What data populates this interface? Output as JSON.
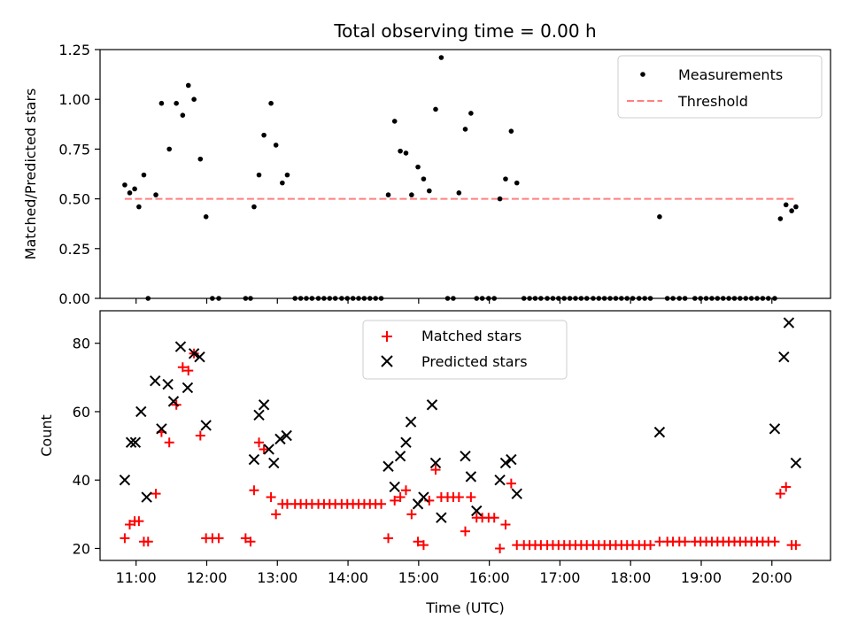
{
  "title": "Total observing time = 0.00 h",
  "colors": {
    "matched": "#ff0000",
    "predicted": "#000000",
    "threshold": "#ff7f7f",
    "measurement": "#000000"
  },
  "chart_data": [
    {
      "type": "scatter",
      "ylabel": "Matched/Predicted stars",
      "xlim": [
        10.49,
        20.83
      ],
      "ylim": [
        0,
        1.25
      ],
      "yticks": [
        "0.00",
        "0.25",
        "0.50",
        "0.75",
        "1.00",
        "1.25"
      ],
      "legend_position": "top-right",
      "threshold": {
        "name": "Threshold",
        "value": 0.5,
        "x_range": [
          10.84,
          20.34
        ]
      },
      "series": [
        {
          "name": "Measurements",
          "x": [
            10.84,
            10.91,
            10.98,
            11.04,
            11.11,
            11.17,
            11.28,
            11.36,
            11.47,
            11.57,
            11.66,
            11.74,
            11.82,
            11.91,
            11.99,
            12.08,
            12.17,
            12.55,
            12.62,
            12.67,
            12.74,
            12.81,
            12.91,
            12.98,
            13.07,
            13.14,
            13.25,
            13.33,
            13.41,
            13.49,
            13.58,
            13.66,
            13.74,
            13.82,
            13.91,
            13.99,
            14.07,
            14.15,
            14.23,
            14.31,
            14.39,
            14.47,
            14.57,
            14.66,
            14.74,
            14.82,
            14.9,
            14.99,
            15.07,
            15.15,
            15.24,
            15.32,
            15.41,
            15.49,
            15.57,
            15.66,
            15.74,
            15.82,
            15.9,
            15.99,
            16.07,
            16.15,
            16.23,
            16.31,
            16.39,
            16.49,
            16.57,
            16.65,
            16.73,
            16.82,
            16.9,
            16.98,
            17.06,
            17.14,
            17.22,
            17.3,
            17.38,
            17.47,
            17.55,
            17.63,
            17.71,
            17.79,
            17.87,
            17.95,
            18.03,
            18.12,
            18.2,
            18.28,
            18.41,
            18.52,
            18.6,
            18.69,
            18.77,
            18.91,
            18.99,
            19.07,
            19.15,
            19.23,
            19.31,
            19.39,
            19.47,
            19.55,
            19.63,
            19.71,
            19.79,
            19.87,
            19.95,
            20.04,
            20.12,
            20.2,
            20.28,
            20.34
          ],
          "y": [
            0.57,
            0.53,
            0.55,
            0.46,
            0.62,
            0.0,
            0.52,
            0.98,
            0.75,
            0.98,
            0.92,
            1.07,
            1.0,
            0.7,
            0.41,
            0.0,
            0.0,
            0.0,
            0.0,
            0.46,
            0.62,
            0.82,
            0.98,
            0.77,
            0.58,
            0.62,
            0.0,
            0.0,
            0.0,
            0.0,
            0.0,
            0.0,
            0.0,
            0.0,
            0.0,
            0.0,
            0.0,
            0.0,
            0.0,
            0.0,
            0.0,
            0.0,
            0.52,
            0.89,
            0.74,
            0.73,
            0.52,
            0.66,
            0.6,
            0.54,
            0.95,
            1.21,
            0.0,
            0.0,
            0.53,
            0.85,
            0.93,
            0.0,
            0.0,
            0.0,
            0.0,
            0.5,
            0.6,
            0.84,
            0.58,
            0.0,
            0.0,
            0.0,
            0.0,
            0.0,
            0.0,
            0.0,
            0.0,
            0.0,
            0.0,
            0.0,
            0.0,
            0.0,
            0.0,
            0.0,
            0.0,
            0.0,
            0.0,
            0.0,
            0.0,
            0.0,
            0.0,
            0.0,
            0.41,
            0.0,
            0.0,
            0.0,
            0.0,
            0.0,
            0.0,
            0.0,
            0.0,
            0.0,
            0.0,
            0.0,
            0.0,
            0.0,
            0.0,
            0.0,
            0.0,
            0.0,
            0.0,
            0.0,
            0.4,
            0.47,
            0.44,
            0.46
          ]
        }
      ]
    },
    {
      "type": "scatter",
      "xlabel": "Time (UTC)",
      "ylabel": "Count",
      "xlim": [
        10.49,
        20.83
      ],
      "ylim": [
        16.5,
        89.5
      ],
      "yticks": [
        "20",
        "40",
        "60",
        "80"
      ],
      "xticks": [
        "11:00",
        "12:00",
        "13:00",
        "14:00",
        "15:00",
        "16:00",
        "17:00",
        "18:00",
        "19:00",
        "20:00"
      ],
      "legend_position": "top-center",
      "series": [
        {
          "name": "Matched stars",
          "marker": "plus",
          "x": [
            10.84,
            10.91,
            10.98,
            11.04,
            11.11,
            11.17,
            11.28,
            11.36,
            11.47,
            11.57,
            11.66,
            11.74,
            11.82,
            11.91,
            11.99,
            12.08,
            12.17,
            12.55,
            12.62,
            12.67,
            12.74,
            12.81,
            12.91,
            12.98,
            13.07,
            13.14,
            13.25,
            13.33,
            13.41,
            13.49,
            13.58,
            13.66,
            13.74,
            13.82,
            13.91,
            13.99,
            14.07,
            14.15,
            14.23,
            14.31,
            14.39,
            14.47,
            14.57,
            14.66,
            14.74,
            14.82,
            14.9,
            14.99,
            15.07,
            15.15,
            15.24,
            15.32,
            15.41,
            15.49,
            15.57,
            15.66,
            15.74,
            15.82,
            15.9,
            15.99,
            16.07,
            16.15,
            16.23,
            16.31,
            16.39,
            16.49,
            16.57,
            16.65,
            16.73,
            16.82,
            16.9,
            16.98,
            17.06,
            17.14,
            17.22,
            17.3,
            17.38,
            17.47,
            17.55,
            17.63,
            17.71,
            17.79,
            17.87,
            17.95,
            18.03,
            18.12,
            18.2,
            18.28,
            18.41,
            18.52,
            18.6,
            18.69,
            18.77,
            18.91,
            18.99,
            19.07,
            19.15,
            19.23,
            19.31,
            19.39,
            19.47,
            19.55,
            19.63,
            19.71,
            19.79,
            19.87,
            19.95,
            20.04,
            20.12,
            20.2,
            20.28,
            20.34
          ],
          "y": [
            23,
            27,
            28,
            28,
            22,
            22,
            36,
            54,
            51,
            62,
            73,
            72,
            77,
            53,
            23,
            23,
            23,
            23,
            22,
            37,
            51,
            49,
            35,
            30,
            33,
            33,
            33,
            33,
            33,
            33,
            33,
            33,
            33,
            33,
            33,
            33,
            33,
            33,
            33,
            33,
            33,
            33,
            23,
            34,
            35,
            37,
            30,
            22,
            21,
            34,
            43,
            35,
            35,
            35,
            35,
            25,
            35,
            29,
            29,
            29,
            29,
            20,
            27,
            39,
            21,
            21,
            21,
            21,
            21,
            21,
            21,
            21,
            21,
            21,
            21,
            21,
            21,
            21,
            21,
            21,
            21,
            21,
            21,
            21,
            21,
            21,
            21,
            21,
            22,
            22,
            22,
            22,
            22,
            22,
            22,
            22,
            22,
            22,
            22,
            22,
            22,
            22,
            22,
            22,
            22,
            22,
            22,
            22,
            36,
            38,
            21,
            21
          ]
        },
        {
          "name": "Predicted stars",
          "marker": "x",
          "x": [
            10.84,
            10.93,
            10.99,
            11.07,
            11.15,
            11.27,
            11.36,
            11.45,
            11.53,
            11.63,
            11.73,
            11.82,
            11.9,
            11.99,
            12.67,
            12.74,
            12.81,
            12.88,
            12.95,
            13.04,
            13.13,
            14.57,
            14.66,
            14.74,
            14.82,
            14.89,
            14.99,
            15.07,
            15.19,
            15.24,
            15.32,
            15.66,
            15.74,
            15.82,
            16.15,
            16.23,
            16.31,
            16.39,
            18.41,
            20.04,
            20.17,
            20.24,
            20.34
          ],
          "y": [
            40,
            51,
            51,
            60,
            35,
            69,
            55,
            68,
            63,
            79,
            67,
            77,
            76,
            56,
            46,
            59,
            62,
            49,
            45,
            52,
            53,
            44,
            38,
            47,
            51,
            57,
            33,
            35,
            62,
            45,
            29,
            47,
            41,
            31,
            40,
            45,
            46,
            36,
            54,
            55,
            76,
            86,
            45
          ]
        }
      ]
    }
  ]
}
